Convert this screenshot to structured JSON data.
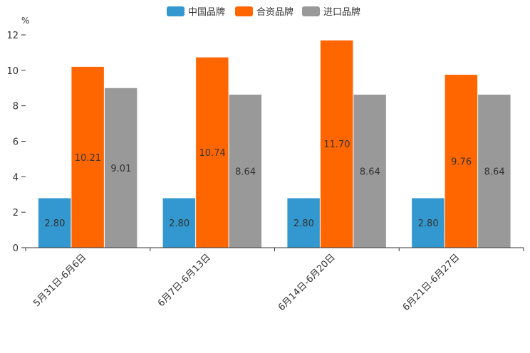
{
  "chart_data": {
    "type": "bar",
    "unit": "%",
    "categories": [
      "5月31日-6月6日",
      "6月7日-6月13日",
      "6月14日-6月20日",
      "6月21日-6月27日"
    ],
    "series": [
      {
        "name": "中国品牌",
        "color": "#3398cf",
        "values": [
          2.8,
          2.8,
          2.8,
          2.8
        ],
        "labels": [
          "2.80",
          "2.80",
          "2.80",
          "2.80"
        ]
      },
      {
        "name": "合资品牌",
        "color": "#ff6600",
        "values": [
          10.21,
          10.74,
          11.7,
          9.76
        ],
        "labels": [
          "10.21",
          "10.74",
          "11.70",
          "9.76"
        ]
      },
      {
        "name": "进口品牌",
        "color": "#999999",
        "values": [
          9.01,
          8.64,
          8.64,
          8.64
        ],
        "labels": [
          "9.01",
          "8.64",
          "8.64",
          "8.64"
        ]
      }
    ],
    "ylim": [
      0,
      12
    ],
    "yticks": [
      0,
      2,
      4,
      6,
      8,
      10,
      12
    ],
    "grid": false,
    "legend": "top-center"
  }
}
